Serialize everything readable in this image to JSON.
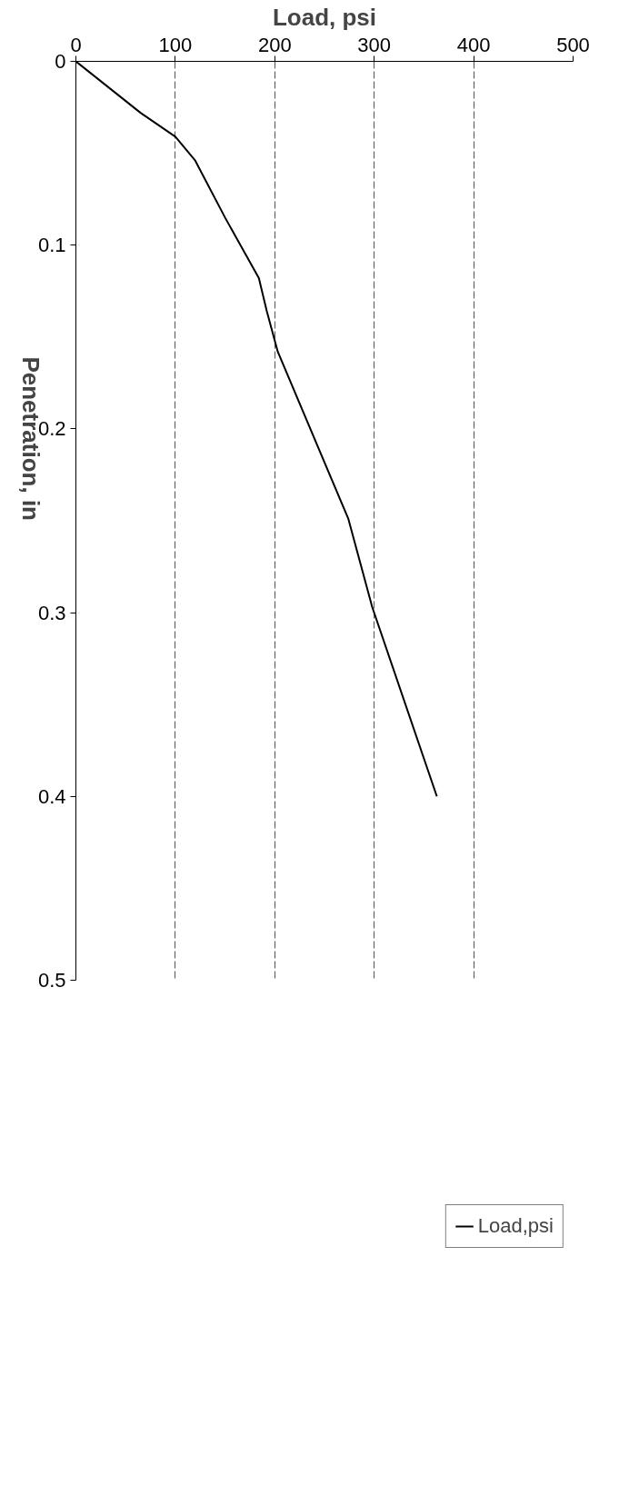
{
  "chart_data": {
    "type": "line",
    "xlabel": "Load, psi",
    "ylabel": "Penetration, in",
    "x": [
      0,
      65,
      100,
      120,
      150,
      184,
      192,
      203,
      274,
      298,
      363
    ],
    "series": [
      {
        "name": "Load,psi",
        "color": "#000000",
        "values": [
          0,
          0.028,
          0.041,
          0.054,
          0.085,
          0.118,
          0.136,
          0.158,
          0.249,
          0.297,
          0.4
        ]
      }
    ],
    "xlim": [
      0,
      500
    ],
    "xticks": [
      0,
      100,
      200,
      300,
      400,
      500
    ],
    "ylim": [
      0.5,
      0
    ],
    "yticks": [
      0,
      0.1,
      0.2,
      0.3,
      0.4,
      0.5
    ],
    "grid": "x",
    "legend": "bottom right",
    "marker": "none",
    "line_style": "solid"
  }
}
